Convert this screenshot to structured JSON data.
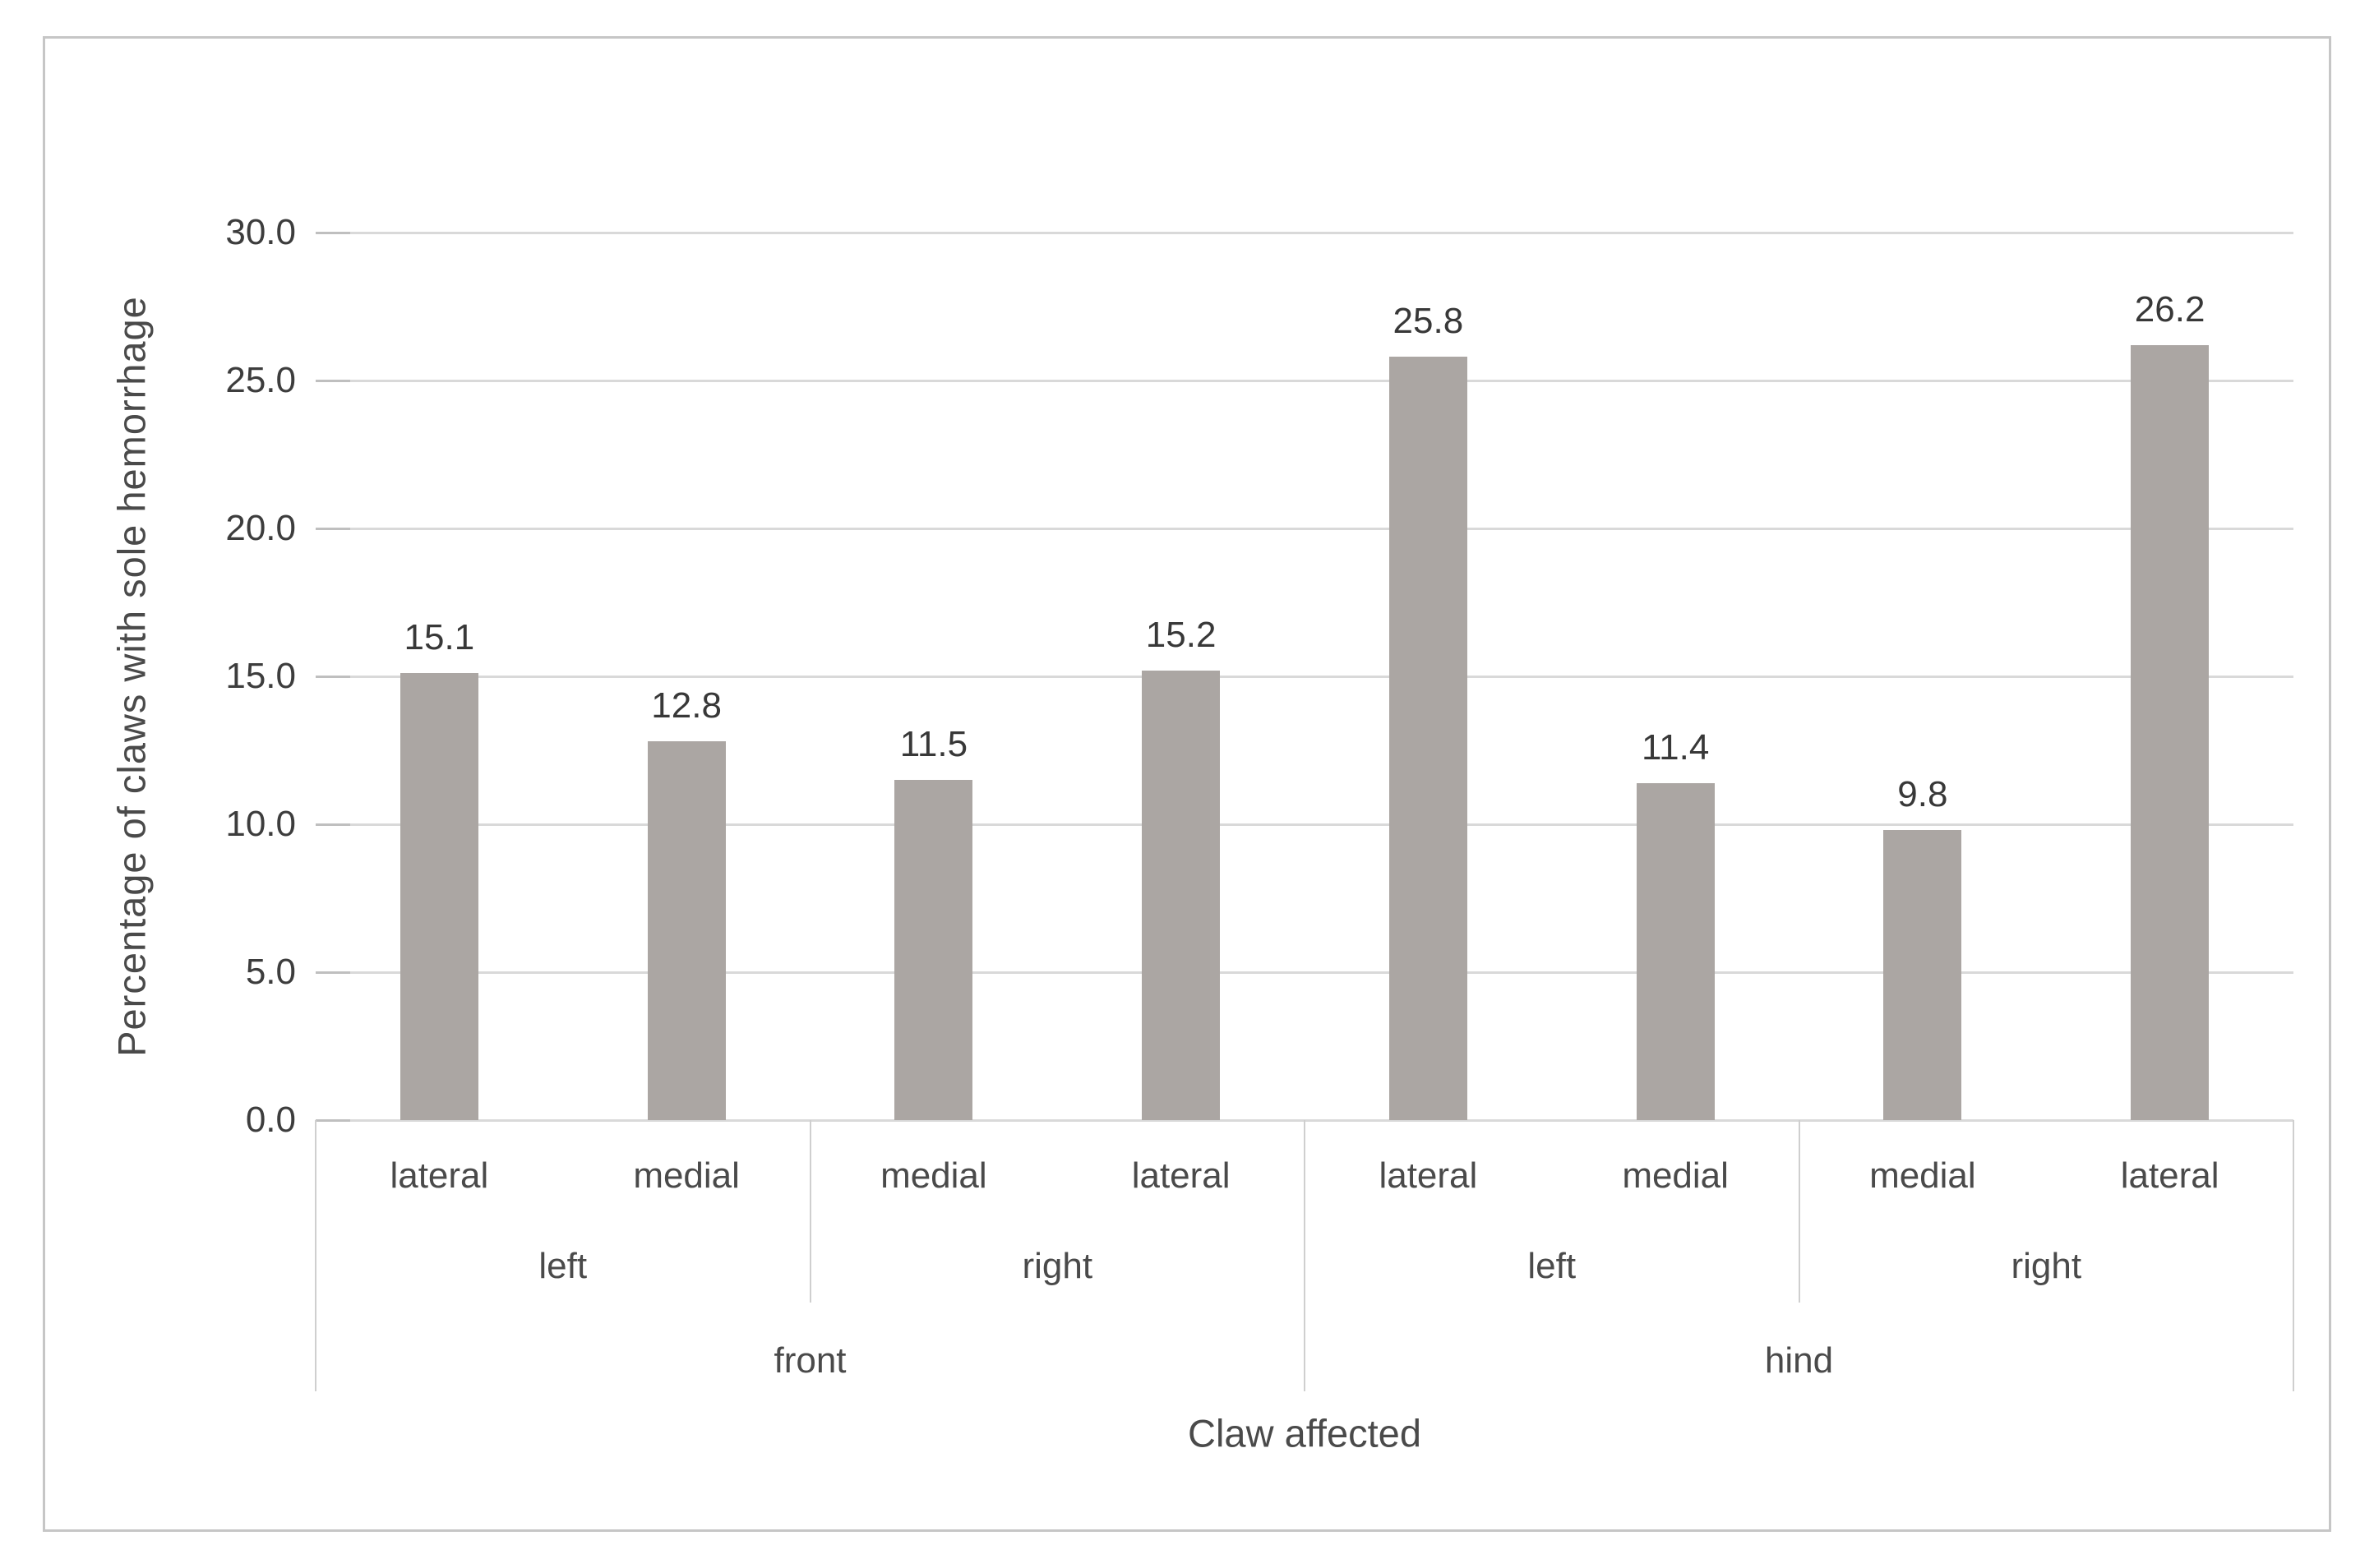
{
  "figure": {
    "y_axis": {
      "title": "Percentage of claws with sole hemorrhage",
      "ticks": [
        "30.0",
        "25.0",
        "20.0",
        "15.0",
        "10.0",
        "5.0",
        "0.0"
      ]
    },
    "x_axis": {
      "title": "Claw affected",
      "claw_labels": [
        "lateral",
        "medial",
        "medial",
        "lateral",
        "lateral",
        "medial",
        "medial",
        "lateral"
      ],
      "side_labels": [
        "left",
        "right",
        "left",
        "right"
      ],
      "group_labels": [
        "front",
        "hind"
      ]
    }
  },
  "chart_data": {
    "type": "bar",
    "title": "",
    "xlabel": "Claw affected",
    "ylabel": "Percentage of claws with sole hemorrhage",
    "ylim": [
      0,
      30
    ],
    "ytick_interval": 5,
    "ytick_labels": [
      "30.0",
      "25.0",
      "20.0",
      "15.0",
      "10.0",
      "5.0",
      "0.0"
    ],
    "grid": true,
    "legend": false,
    "bar_color": "#aba6a3",
    "gridline_color": "#d9d9d9",
    "x_hierarchy": {
      "groups": [
        {
          "label": "front",
          "sides": [
            {
              "label": "left",
              "claws": [
                {
                  "label": "lateral",
                  "value": 15.1
                },
                {
                  "label": "medial",
                  "value": 12.8
                }
              ]
            },
            {
              "label": "right",
              "claws": [
                {
                  "label": "medial",
                  "value": 11.5
                },
                {
                  "label": "lateral",
                  "value": 15.2
                }
              ]
            }
          ]
        },
        {
          "label": "hind",
          "sides": [
            {
              "label": "left",
              "claws": [
                {
                  "label": "lateral",
                  "value": 25.8
                },
                {
                  "label": "medial",
                  "value": 11.4
                }
              ]
            },
            {
              "label": "right",
              "claws": [
                {
                  "label": "medial",
                  "value": 9.8
                },
                {
                  "label": "lateral",
                  "value": 26.2
                }
              ]
            }
          ]
        }
      ]
    },
    "categories": [
      "front-left-lateral",
      "front-left-medial",
      "front-right-medial",
      "front-right-lateral",
      "hind-left-lateral",
      "hind-left-medial",
      "hind-right-medial",
      "hind-right-lateral"
    ],
    "values": [
      15.1,
      12.8,
      11.5,
      15.2,
      25.8,
      11.4,
      9.8,
      26.2
    ],
    "value_labels": [
      "15.1",
      "12.8",
      "11.5",
      "15.2",
      "25.8",
      "11.4",
      "9.8",
      "26.2"
    ]
  }
}
